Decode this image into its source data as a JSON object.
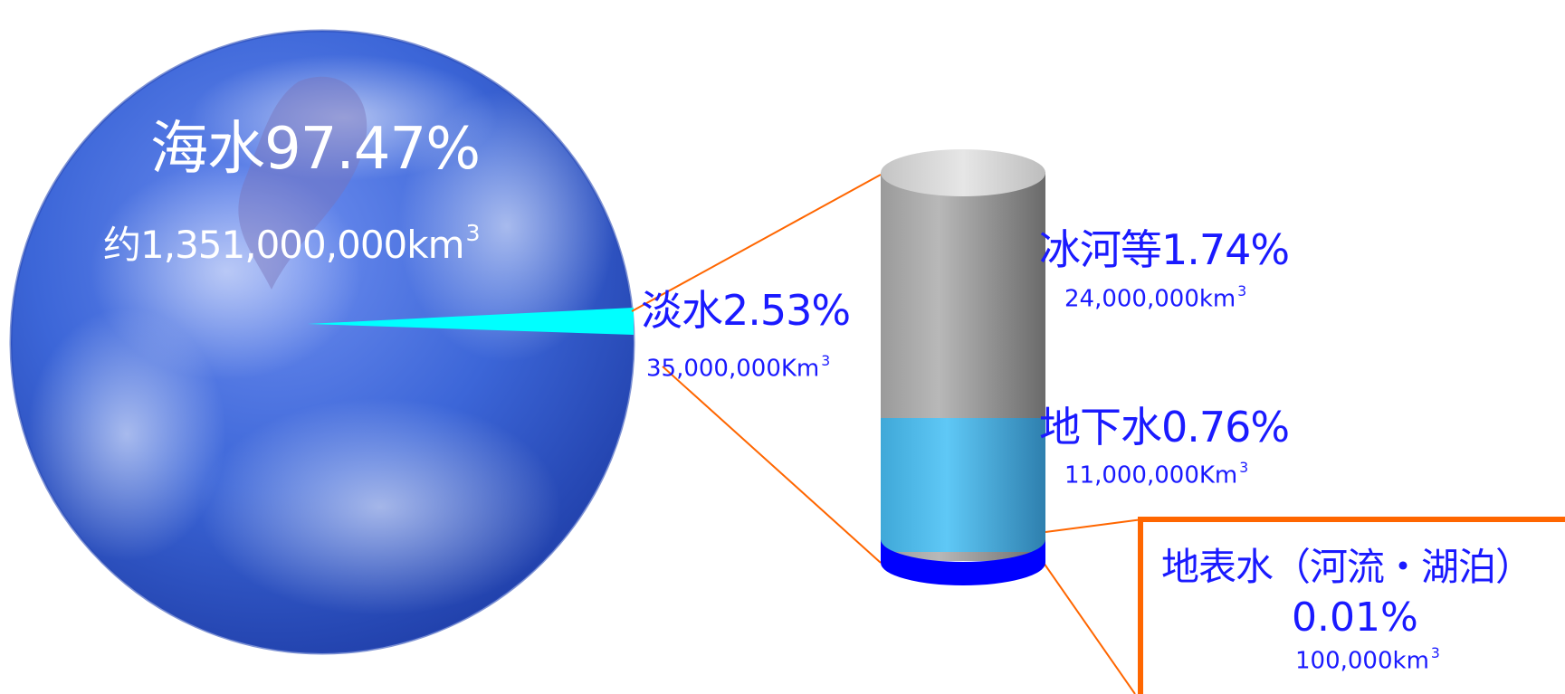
{
  "seawater": {
    "label": "海水97.47%",
    "volume": "约1,351,000,000km",
    "volume_sup": "3"
  },
  "freshwater": {
    "label": "淡水2.53%",
    "volume": "35,000,000Km",
    "volume_sup": "3"
  },
  "glacier": {
    "label": "冰河等1.74%",
    "volume": "24,000,000km",
    "volume_sup": "3"
  },
  "groundwater": {
    "label": "地下水0.76%",
    "volume": "11,000,000Km",
    "volume_sup": "3"
  },
  "surface_water": {
    "label": "地表水（河流・湖泊）",
    "percent": "0.01%",
    "volume": "100,000km",
    "volume_sup": "3"
  },
  "colors": {
    "label_text": "#1a1aff",
    "connector": "#ff6600",
    "freshwater_wedge": "#00ffff",
    "groundwater_band": "#5bc8f5",
    "surface_band": "#0000ff",
    "glacier_band": "#8a8a8a",
    "earth_ocean": "#3a66d6"
  }
}
